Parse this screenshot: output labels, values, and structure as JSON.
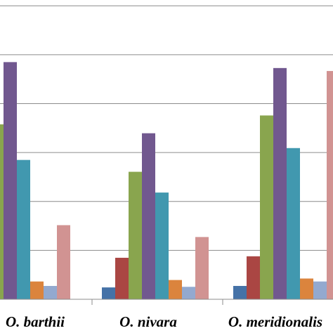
{
  "chart_data": {
    "type": "bar",
    "categories": [
      "O. barthii",
      "O. nivara",
      "O. meridionalis"
    ],
    "ylim": [
      0,
      1.0
    ],
    "grid": true,
    "series": [
      {
        "color": "#4572A7",
        "values": [
          null,
          0.04,
          0.045
        ]
      },
      {
        "color": "#AA4643",
        "values": [
          null,
          0.14,
          0.145
        ]
      },
      {
        "color": "#89A54E",
        "values": [
          0.59,
          0.43,
          0.62
        ]
      },
      {
        "color": "#71588F",
        "values": [
          0.8,
          0.56,
          0.78
        ]
      },
      {
        "color": "#4198AF",
        "values": [
          0.47,
          0.36,
          0.51
        ]
      },
      {
        "color": "#DB843D",
        "values": [
          0.06,
          0.065,
          0.07
        ]
      },
      {
        "color": "#93A9CF",
        "values": [
          0.045,
          0.042,
          0.06
        ]
      },
      {
        "color": "#D19392",
        "values": [
          0.25,
          0.21,
          0.77
        ]
      }
    ]
  }
}
